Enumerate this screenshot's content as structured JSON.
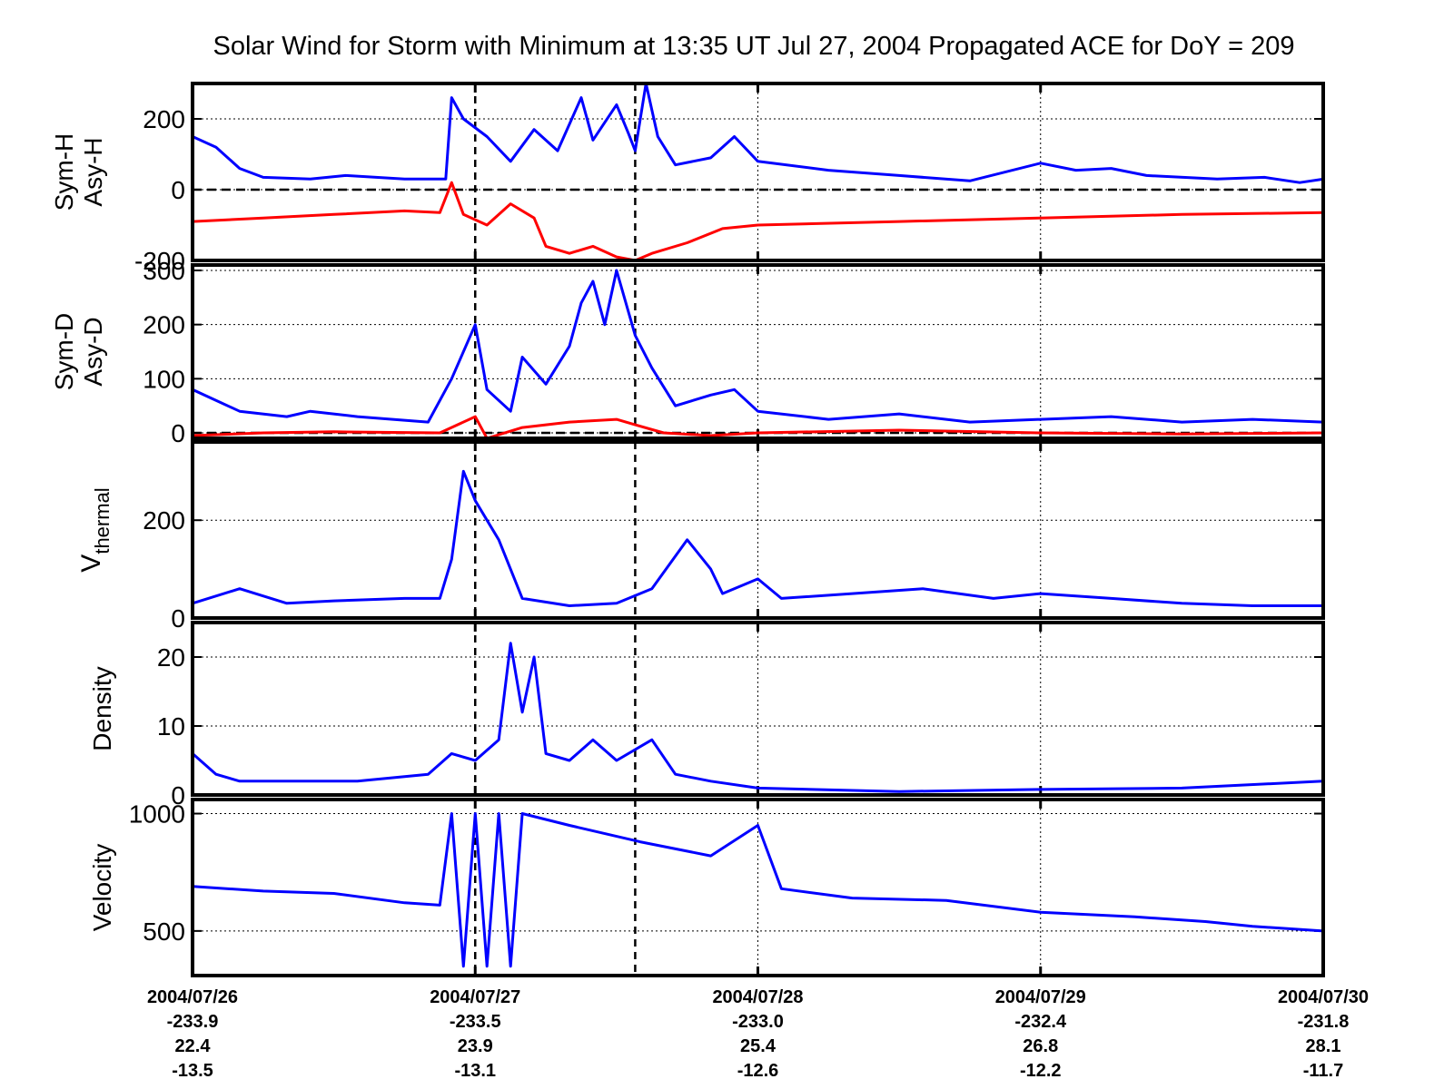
{
  "title": "Solar Wind for Storm with Minimum at 13:35 UT Jul 27, 2004  Propagated ACE for DoY = 209",
  "colors": {
    "series_1": "#0000ff",
    "series_2": "#ff0000",
    "axis": "#000000",
    "grid": "#000000"
  },
  "x_axis": {
    "start": "2004-07-26T00:00",
    "end": "2004-07-30T00:00",
    "ticks": [
      {
        "date": "2004-07-26T00:00",
        "label": "2004/07/26",
        "row1": "-233.9",
        "row2": "22.4",
        "row3": "-13.5"
      },
      {
        "date": "2004-07-27T00:00",
        "label": "2004/07/27",
        "row1": "-233.5",
        "row2": "23.9",
        "row3": "-13.1"
      },
      {
        "date": "2004-07-28T00:00",
        "label": "2004/07/28",
        "row1": "-233.0",
        "row2": "25.4",
        "row3": "-12.6"
      },
      {
        "date": "2004-07-29T00:00",
        "label": "2004/07/29",
        "row1": "-232.4",
        "row2": "26.8",
        "row3": "-12.2"
      },
      {
        "date": "2004-07-30T00:00",
        "label": "2004/07/30",
        "row1": "-231.8",
        "row2": "28.1",
        "row3": "-11.7"
      }
    ],
    "markers": [
      {
        "date": "2004-07-27T00:00",
        "style": "dashed"
      },
      {
        "date": "2004-07-27T13:35",
        "style": "dashed"
      },
      {
        "date": "2004-07-28T00:00",
        "style": "dotted"
      },
      {
        "date": "2004-07-29T00:00",
        "style": "dotted"
      }
    ]
  },
  "chart_data": [
    {
      "type": "line",
      "ylabel": [
        "Sym-H",
        "Asy-H"
      ],
      "ylim": [
        -200,
        300
      ],
      "yticks": [
        {
          "v": 200,
          "label": "200"
        },
        {
          "v": 0,
          "label": "0"
        },
        {
          "v": -200,
          "label": "-200"
        }
      ],
      "zero_line": true,
      "series": [
        {
          "color": "#0000ff",
          "points": [
            [
              "2004-07-26T00:00",
              150
            ],
            [
              "2004-07-26T02:00",
              120
            ],
            [
              "2004-07-26T04:00",
              60
            ],
            [
              "2004-07-26T06:00",
              35
            ],
            [
              "2004-07-26T10:00",
              30
            ],
            [
              "2004-07-26T13:00",
              40
            ],
            [
              "2004-07-26T18:00",
              30
            ],
            [
              "2004-07-26T21:30",
              30
            ],
            [
              "2004-07-26T22:00",
              260
            ],
            [
              "2004-07-26T23:00",
              200
            ],
            [
              "2004-07-27T01:00",
              150
            ],
            [
              "2004-07-27T03:00",
              80
            ],
            [
              "2004-07-27T05:00",
              170
            ],
            [
              "2004-07-27T07:00",
              110
            ],
            [
              "2004-07-27T09:00",
              260
            ],
            [
              "2004-07-27T10:00",
              140
            ],
            [
              "2004-07-27T12:00",
              240
            ],
            [
              "2004-07-27T13:00",
              160
            ],
            [
              "2004-07-27T13:35",
              110
            ],
            [
              "2004-07-27T14:30",
              300
            ],
            [
              "2004-07-27T15:30",
              150
            ],
            [
              "2004-07-27T17:00",
              70
            ],
            [
              "2004-07-27T20:00",
              90
            ],
            [
              "2004-07-27T22:00",
              150
            ],
            [
              "2004-07-28T00:00",
              80
            ],
            [
              "2004-07-28T06:00",
              55
            ],
            [
              "2004-07-28T12:00",
              40
            ],
            [
              "2004-07-28T18:00",
              25
            ],
            [
              "2004-07-29T00:00",
              75
            ],
            [
              "2004-07-29T03:00",
              55
            ],
            [
              "2004-07-29T06:00",
              60
            ],
            [
              "2004-07-29T09:00",
              40
            ],
            [
              "2004-07-29T15:00",
              30
            ],
            [
              "2004-07-29T19:00",
              35
            ],
            [
              "2004-07-29T22:00",
              20
            ],
            [
              "2004-07-30T00:00",
              30
            ]
          ]
        },
        {
          "color": "#ff0000",
          "points": [
            [
              "2004-07-26T00:00",
              -90
            ],
            [
              "2004-07-26T06:00",
              -80
            ],
            [
              "2004-07-26T12:00",
              -70
            ],
            [
              "2004-07-26T18:00",
              -60
            ],
            [
              "2004-07-26T21:00",
              -65
            ],
            [
              "2004-07-26T22:00",
              20
            ],
            [
              "2004-07-26T23:00",
              -70
            ],
            [
              "2004-07-27T01:00",
              -100
            ],
            [
              "2004-07-27T03:00",
              -40
            ],
            [
              "2004-07-27T05:00",
              -80
            ],
            [
              "2004-07-27T06:00",
              -160
            ],
            [
              "2004-07-27T08:00",
              -180
            ],
            [
              "2004-07-27T10:00",
              -160
            ],
            [
              "2004-07-27T12:00",
              -190
            ],
            [
              "2004-07-27T13:35",
              -200
            ],
            [
              "2004-07-27T15:00",
              -180
            ],
            [
              "2004-07-27T18:00",
              -150
            ],
            [
              "2004-07-27T21:00",
              -110
            ],
            [
              "2004-07-28T00:00",
              -100
            ],
            [
              "2004-07-28T12:00",
              -90
            ],
            [
              "2004-07-29T00:00",
              -80
            ],
            [
              "2004-07-29T12:00",
              -70
            ],
            [
              "2004-07-30T00:00",
              -65
            ]
          ]
        }
      ]
    },
    {
      "type": "line",
      "ylabel": [
        "Sym-D",
        "Asy-D"
      ],
      "ylim": [
        -10,
        310
      ],
      "yticks": [
        {
          "v": 300,
          "label": "300"
        },
        {
          "v": 200,
          "label": "200"
        },
        {
          "v": 100,
          "label": "100"
        },
        {
          "v": 0,
          "label": "0"
        }
      ],
      "zero_line": true,
      "series": [
        {
          "color": "#0000ff",
          "points": [
            [
              "2004-07-26T00:00",
              80
            ],
            [
              "2004-07-26T02:00",
              60
            ],
            [
              "2004-07-26T04:00",
              40
            ],
            [
              "2004-07-26T08:00",
              30
            ],
            [
              "2004-07-26T10:00",
              40
            ],
            [
              "2004-07-26T14:00",
              30
            ],
            [
              "2004-07-26T20:00",
              20
            ],
            [
              "2004-07-26T22:00",
              100
            ],
            [
              "2004-07-27T00:00",
              200
            ],
            [
              "2004-07-27T01:00",
              80
            ],
            [
              "2004-07-27T03:00",
              40
            ],
            [
              "2004-07-27T04:00",
              140
            ],
            [
              "2004-07-27T06:00",
              90
            ],
            [
              "2004-07-27T08:00",
              160
            ],
            [
              "2004-07-27T09:00",
              240
            ],
            [
              "2004-07-27T10:00",
              280
            ],
            [
              "2004-07-27T11:00",
              200
            ],
            [
              "2004-07-27T12:00",
              300
            ],
            [
              "2004-07-27T13:35",
              180
            ],
            [
              "2004-07-27T15:00",
              120
            ],
            [
              "2004-07-27T17:00",
              50
            ],
            [
              "2004-07-27T20:00",
              70
            ],
            [
              "2004-07-27T22:00",
              80
            ],
            [
              "2004-07-28T00:00",
              40
            ],
            [
              "2004-07-28T06:00",
              25
            ],
            [
              "2004-07-28T12:00",
              35
            ],
            [
              "2004-07-28T18:00",
              20
            ],
            [
              "2004-07-29T00:00",
              25
            ],
            [
              "2004-07-29T06:00",
              30
            ],
            [
              "2004-07-29T12:00",
              20
            ],
            [
              "2004-07-29T18:00",
              25
            ],
            [
              "2004-07-30T00:00",
              20
            ]
          ]
        },
        {
          "color": "#ff0000",
          "points": [
            [
              "2004-07-26T00:00",
              -5
            ],
            [
              "2004-07-26T06:00",
              0
            ],
            [
              "2004-07-26T12:00",
              2
            ],
            [
              "2004-07-26T21:00",
              0
            ],
            [
              "2004-07-27T00:00",
              30
            ],
            [
              "2004-07-27T01:00",
              -10
            ],
            [
              "2004-07-27T04:00",
              10
            ],
            [
              "2004-07-27T08:00",
              20
            ],
            [
              "2004-07-27T12:00",
              25
            ],
            [
              "2004-07-27T13:35",
              15
            ],
            [
              "2004-07-27T16:00",
              0
            ],
            [
              "2004-07-27T20:00",
              -5
            ],
            [
              "2004-07-28T00:00",
              0
            ],
            [
              "2004-07-28T12:00",
              5
            ],
            [
              "2004-07-29T00:00",
              0
            ],
            [
              "2004-07-29T12:00",
              -2
            ],
            [
              "2004-07-30T00:00",
              0
            ]
          ]
        }
      ]
    },
    {
      "type": "line",
      "ylabel": [
        "V",
        "thermal"
      ],
      "ylim": [
        0,
        360
      ],
      "yticks": [
        {
          "v": 200,
          "label": "200"
        },
        {
          "v": 0,
          "label": "0"
        }
      ],
      "zero_line": false,
      "series": [
        {
          "color": "#0000ff",
          "points": [
            [
              "2004-07-26T00:00",
              30
            ],
            [
              "2004-07-26T04:00",
              60
            ],
            [
              "2004-07-26T08:00",
              30
            ],
            [
              "2004-07-26T12:00",
              35
            ],
            [
              "2004-07-26T18:00",
              40
            ],
            [
              "2004-07-26T21:00",
              40
            ],
            [
              "2004-07-26T22:00",
              120
            ],
            [
              "2004-07-26T23:00",
              300
            ],
            [
              "2004-07-27T00:00",
              240
            ],
            [
              "2004-07-27T02:00",
              160
            ],
            [
              "2004-07-27T04:00",
              40
            ],
            [
              "2004-07-27T08:00",
              25
            ],
            [
              "2004-07-27T12:00",
              30
            ],
            [
              "2004-07-27T15:00",
              60
            ],
            [
              "2004-07-27T18:00",
              160
            ],
            [
              "2004-07-27T20:00",
              100
            ],
            [
              "2004-07-27T21:00",
              50
            ],
            [
              "2004-07-28T00:00",
              80
            ],
            [
              "2004-07-28T02:00",
              40
            ],
            [
              "2004-07-28T08:00",
              50
            ],
            [
              "2004-07-28T14:00",
              60
            ],
            [
              "2004-07-28T20:00",
              40
            ],
            [
              "2004-07-29T00:00",
              50
            ],
            [
              "2004-07-29T06:00",
              40
            ],
            [
              "2004-07-29T12:00",
              30
            ],
            [
              "2004-07-29T18:00",
              25
            ],
            [
              "2004-07-30T00:00",
              25
            ]
          ]
        }
      ]
    },
    {
      "type": "line",
      "ylabel": [
        "Density"
      ],
      "ylim": [
        0,
        25
      ],
      "yticks": [
        {
          "v": 20,
          "label": "20"
        },
        {
          "v": 10,
          "label": "10"
        },
        {
          "v": 0,
          "label": "0"
        }
      ],
      "zero_line": false,
      "series": [
        {
          "color": "#0000ff",
          "points": [
            [
              "2004-07-26T00:00",
              6
            ],
            [
              "2004-07-26T02:00",
              3
            ],
            [
              "2004-07-26T04:00",
              2
            ],
            [
              "2004-07-26T08:00",
              2
            ],
            [
              "2004-07-26T14:00",
              2
            ],
            [
              "2004-07-26T20:00",
              3
            ],
            [
              "2004-07-26T22:00",
              6
            ],
            [
              "2004-07-27T00:00",
              5
            ],
            [
              "2004-07-27T02:00",
              8
            ],
            [
              "2004-07-27T03:00",
              22
            ],
            [
              "2004-07-27T04:00",
              12
            ],
            [
              "2004-07-27T05:00",
              20
            ],
            [
              "2004-07-27T06:00",
              6
            ],
            [
              "2004-07-27T08:00",
              5
            ],
            [
              "2004-07-27T10:00",
              8
            ],
            [
              "2004-07-27T12:00",
              5
            ],
            [
              "2004-07-27T15:00",
              8
            ],
            [
              "2004-07-27T17:00",
              3
            ],
            [
              "2004-07-27T20:00",
              2
            ],
            [
              "2004-07-28T00:00",
              1
            ],
            [
              "2004-07-28T12:00",
              0.5
            ],
            [
              "2004-07-29T00:00",
              0.8
            ],
            [
              "2004-07-29T12:00",
              1
            ],
            [
              "2004-07-30T00:00",
              2
            ]
          ]
        }
      ]
    },
    {
      "type": "line",
      "ylabel": [
        "Velocity"
      ],
      "ylim": [
        310,
        1060
      ],
      "yticks": [
        {
          "v": 1000,
          "label": "1000"
        },
        {
          "v": 500,
          "label": "500"
        }
      ],
      "zero_line": false,
      "series": [
        {
          "color": "#0000ff",
          "points": [
            [
              "2004-07-26T00:00",
              690
            ],
            [
              "2004-07-26T06:00",
              670
            ],
            [
              "2004-07-26T12:00",
              660
            ],
            [
              "2004-07-26T18:00",
              620
            ],
            [
              "2004-07-26T21:00",
              610
            ],
            [
              "2004-07-26T22:00",
              1000
            ],
            [
              "2004-07-26T23:00",
              350
            ],
            [
              "2004-07-27T00:00",
              1000
            ],
            [
              "2004-07-27T01:00",
              350
            ],
            [
              "2004-07-27T02:00",
              1000
            ],
            [
              "2004-07-27T03:00",
              350
            ],
            [
              "2004-07-27T04:00",
              1000
            ],
            [
              "2004-07-27T08:00",
              950
            ],
            [
              "2004-07-27T14:00",
              880
            ],
            [
              "2004-07-27T20:00",
              820
            ],
            [
              "2004-07-28T00:00",
              950
            ],
            [
              "2004-07-28T02:00",
              680
            ],
            [
              "2004-07-28T08:00",
              640
            ],
            [
              "2004-07-28T16:00",
              630
            ],
            [
              "2004-07-29T00:00",
              580
            ],
            [
              "2004-07-29T08:00",
              560
            ],
            [
              "2004-07-29T14:00",
              540
            ],
            [
              "2004-07-29T18:00",
              520
            ],
            [
              "2004-07-30T00:00",
              500
            ]
          ]
        }
      ]
    }
  ]
}
